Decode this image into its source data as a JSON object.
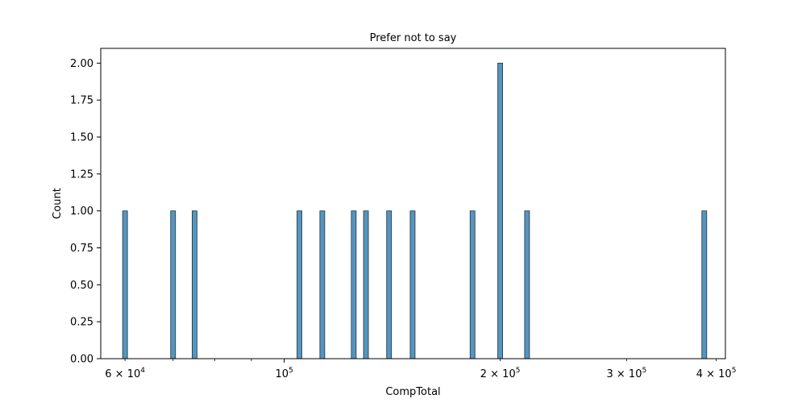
{
  "chart_data": {
    "type": "bar",
    "subtype": "histogram",
    "title": "Prefer not to say",
    "xlabel": "CompTotal",
    "ylabel": "Count",
    "xscale": "log",
    "xlim": [
      55500,
      412000
    ],
    "ylim": [
      0,
      2.1
    ],
    "grid": false,
    "bar_color": "#4c8fbd",
    "edge_color": "#1f2f3a",
    "bars": [
      {
        "x": 60000,
        "count": 1
      },
      {
        "x": 70000,
        "count": 1
      },
      {
        "x": 75000,
        "count": 1
      },
      {
        "x": 105000,
        "count": 1
      },
      {
        "x": 113000,
        "count": 1
      },
      {
        "x": 125000,
        "count": 1
      },
      {
        "x": 130000,
        "count": 1
      },
      {
        "x": 140000,
        "count": 1
      },
      {
        "x": 151000,
        "count": 1
      },
      {
        "x": 183000,
        "count": 1
      },
      {
        "x": 200000,
        "count": 2
      },
      {
        "x": 218000,
        "count": 1
      },
      {
        "x": 385000,
        "count": 1
      }
    ],
    "y_ticks": [
      {
        "value": 0,
        "label": "0.00"
      },
      {
        "value": 0.25,
        "label": "0.25"
      },
      {
        "value": 0.5,
        "label": "0.50"
      },
      {
        "value": 0.75,
        "label": "0.75"
      },
      {
        "value": 1.0,
        "label": "1.00"
      },
      {
        "value": 1.25,
        "label": "1.25"
      },
      {
        "value": 1.5,
        "label": "1.50"
      },
      {
        "value": 1.75,
        "label": "1.75"
      },
      {
        "value": 2.0,
        "label": "2.00"
      }
    ],
    "x_major_ticks": [
      {
        "value": 100000,
        "mantissa": "",
        "base": "10",
        "exp": "5"
      }
    ],
    "x_minor_ticks": [
      {
        "value": 60000,
        "mantissa": "6",
        "base": "10",
        "exp": "4"
      },
      {
        "value": 70000
      },
      {
        "value": 80000
      },
      {
        "value": 90000
      },
      {
        "value": 200000,
        "mantissa": "2",
        "base": "10",
        "exp": "5"
      },
      {
        "value": 300000,
        "mantissa": "3",
        "base": "10",
        "exp": "5"
      },
      {
        "value": 400000,
        "mantissa": "4",
        "base": "10",
        "exp": "5"
      }
    ]
  }
}
